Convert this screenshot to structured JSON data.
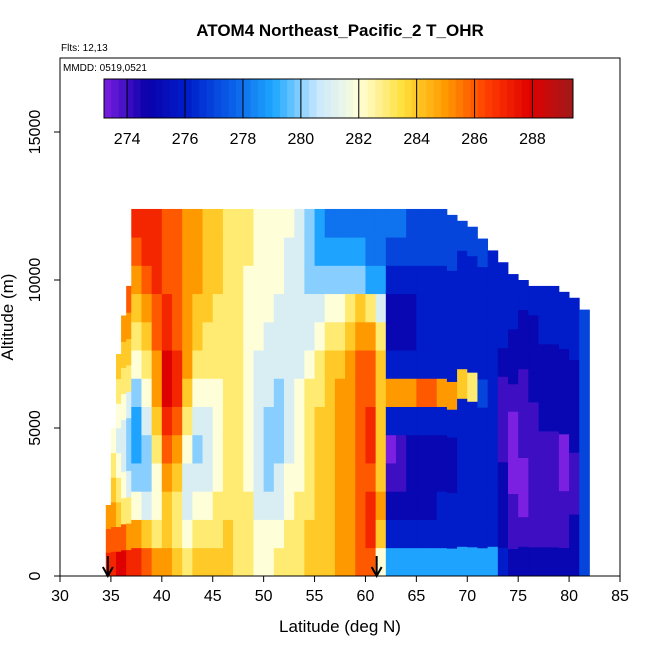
{
  "chart_data": {
    "type": "heatmap",
    "title": "ATOM4 Northeast_Pacific_2 T_OHR",
    "annotations": [
      "Flts: 12,13",
      "MMDD: 0519,0521"
    ],
    "xlabel": "Latitude (deg N)",
    "ylabel": "Altitude (m)",
    "xlim": [
      30,
      85
    ],
    "ylim": [
      0,
      17500
    ],
    "xticks": [
      "30",
      "35",
      "40",
      "45",
      "50",
      "55",
      "60",
      "65",
      "70",
      "75",
      "80",
      "85"
    ],
    "yticks": [
      "0",
      "5000",
      "10000",
      "15000"
    ],
    "colorbar": {
      "range": [
        273.2,
        289.4
      ],
      "ticks": [
        "274",
        "276",
        "278",
        "280",
        "282",
        "284",
        "286",
        "288"
      ],
      "colors": [
        "#7B1FE0",
        "#0A00AA",
        "#0020CC",
        "#0A5FE8",
        "#1FA9FF",
        "#C9E7FF",
        "#FFFFD8",
        "#FFE03C",
        "#FF9A00",
        "#FF3C00",
        "#E00000",
        "#A01A1A"
      ]
    },
    "arrows_at_latitude": [
      34.7,
      61.1
    ],
    "profiles": [
      {
        "lat": 35.0,
        "top": 2400,
        "temps": [
          287,
          286,
          285
        ]
      },
      {
        "lat": 35.5,
        "top": 5000,
        "temps": [
          287,
          286,
          285,
          284,
          283,
          282
        ]
      },
      {
        "lat": 36.0,
        "top": 7500,
        "temps": [
          288,
          286,
          284,
          283,
          282,
          281,
          282,
          283,
          284
        ]
      },
      {
        "lat": 36.5,
        "top": 8800,
        "temps": [
          288,
          286,
          283,
          282,
          281,
          281,
          282,
          283,
          284,
          285
        ]
      },
      {
        "lat": 37.0,
        "top": 9800,
        "temps": [
          287,
          285,
          283,
          281,
          280,
          280,
          281,
          283,
          284,
          285,
          286
        ]
      },
      {
        "lat": 37.5,
        "top": 12400,
        "temps": [
          287,
          285,
          282,
          280,
          279,
          279,
          280,
          282,
          283,
          284,
          285,
          286,
          287
        ]
      },
      {
        "lat": 38.5,
        "top": 12400,
        "temps": [
          286,
          284,
          281,
          280,
          280,
          281,
          282,
          283,
          284,
          285,
          286,
          287,
          287
        ]
      },
      {
        "lat": 39.5,
        "top": 12400,
        "temps": [
          285,
          283,
          282,
          282,
          283,
          284,
          285,
          285,
          286,
          286,
          287,
          287,
          287
        ]
      },
      {
        "lat": 40.5,
        "top": 12400,
        "temps": [
          285,
          284,
          284,
          285,
          286,
          287,
          288,
          288,
          287,
          287,
          286,
          286,
          286
        ]
      },
      {
        "lat": 41.5,
        "top": 12400,
        "temps": [
          284,
          283,
          283,
          284,
          285,
          286,
          287,
          287,
          286,
          286,
          286,
          286,
          286
        ]
      },
      {
        "lat": 42.5,
        "top": 12400,
        "temps": [
          283,
          282,
          281,
          281,
          282,
          283,
          284,
          285,
          285,
          285,
          285,
          285,
          285
        ]
      },
      {
        "lat": 43.5,
        "top": 12400,
        "temps": [
          284,
          283,
          282,
          281,
          280,
          281,
          282,
          283,
          284,
          284,
          285,
          285,
          285
        ]
      },
      {
        "lat": 44.5,
        "top": 12400,
        "temps": [
          284,
          283,
          282,
          281,
          281,
          281,
          282,
          283,
          283,
          284,
          284,
          284,
          284
        ]
      },
      {
        "lat": 45.5,
        "top": 12400,
        "temps": [
          284,
          283,
          283,
          282,
          282,
          282,
          282,
          283,
          283,
          283,
          284,
          284,
          284
        ]
      },
      {
        "lat": 46.5,
        "top": 12400,
        "temps": [
          284,
          284,
          283,
          283,
          283,
          283,
          283,
          283,
          283,
          283,
          283,
          283,
          283
        ]
      },
      {
        "lat": 47.5,
        "top": 12400,
        "temps": [
          283,
          283,
          283,
          283,
          283,
          283,
          283,
          283,
          283,
          283,
          283,
          283,
          283
        ]
      },
      {
        "lat": 48.5,
        "top": 12400,
        "temps": [
          283,
          283,
          283,
          282,
          282,
          282,
          282,
          282,
          282,
          282,
          282,
          283,
          283
        ]
      },
      {
        "lat": 49.5,
        "top": 12400,
        "temps": [
          282,
          282,
          281,
          281,
          281,
          281,
          281,
          281,
          282,
          282,
          282,
          282,
          282
        ]
      },
      {
        "lat": 50.5,
        "top": 12400,
        "temps": [
          282,
          282,
          281,
          280,
          280,
          280,
          281,
          281,
          281,
          282,
          282,
          282,
          282
        ]
      },
      {
        "lat": 51.5,
        "top": 12400,
        "temps": [
          283,
          282,
          281,
          281,
          280,
          280,
          280,
          281,
          281,
          281,
          282,
          282,
          282
        ]
      },
      {
        "lat": 52.5,
        "top": 12400,
        "temps": [
          283,
          283,
          282,
          282,
          281,
          281,
          281,
          281,
          281,
          281,
          281,
          281,
          282
        ]
      },
      {
        "lat": 53.5,
        "top": 12400,
        "temps": [
          283,
          283,
          283,
          282,
          282,
          282,
          282,
          281,
          281,
          281,
          281,
          281,
          281
        ]
      },
      {
        "lat": 54.5,
        "top": 12400,
        "temps": [
          284,
          284,
          283,
          283,
          283,
          283,
          283,
          282,
          281,
          281,
          280,
          280,
          280
        ]
      },
      {
        "lat": 55.5,
        "top": 12400,
        "temps": [
          284,
          284,
          284,
          284,
          284,
          284,
          283,
          283,
          282,
          281,
          280,
          279,
          279
        ]
      },
      {
        "lat": 56.5,
        "top": 12400,
        "temps": [
          284,
          284,
          284,
          284,
          284,
          284,
          284,
          284,
          283,
          282,
          280,
          279,
          278
        ]
      },
      {
        "lat": 57.5,
        "top": 12400,
        "temps": [
          285,
          285,
          285,
          285,
          285,
          285,
          285,
          284,
          283,
          282,
          280,
          279,
          278
        ]
      },
      {
        "lat": 58.5,
        "top": 12400,
        "temps": [
          285,
          285,
          285,
          285,
          285,
          285,
          285,
          285,
          284,
          283,
          280,
          279,
          278
        ]
      },
      {
        "lat": 59.5,
        "top": 12400,
        "temps": [
          286,
          286,
          286,
          286,
          286,
          286,
          286,
          286,
          285,
          284,
          280,
          279,
          278
        ]
      },
      {
        "lat": 60.5,
        "top": 12400,
        "temps": [
          286,
          287,
          287,
          286,
          287,
          287,
          286,
          286,
          285,
          283,
          279,
          278,
          278
        ]
      },
      {
        "lat": 61.5,
        "top": 12400,
        "temps": [
          282,
          284,
          285,
          284,
          284,
          284,
          284,
          284,
          283,
          281,
          279,
          278,
          278
        ]
      },
      {
        "lat": 62.5,
        "top": 12400,
        "temps": [
          279,
          276,
          275,
          274,
          273,
          276,
          285,
          276,
          275,
          275,
          276,
          277,
          278
        ]
      },
      {
        "lat": 63.5,
        "top": 12400,
        "temps": [
          279,
          276,
          275,
          274,
          274,
          276,
          285,
          276,
          275,
          275,
          276,
          277,
          278
        ]
      },
      {
        "lat": 64.5,
        "top": 12400,
        "temps": [
          279,
          276,
          275,
          275,
          275,
          276,
          285,
          276,
          275,
          275,
          276,
          277,
          277
        ]
      },
      {
        "lat": 65.5,
        "top": 12400,
        "temps": [
          279,
          276,
          275,
          275,
          275,
          276,
          286,
          276,
          276,
          276,
          276,
          277,
          277
        ]
      },
      {
        "lat": 66.5,
        "top": 12400,
        "temps": [
          279,
          276,
          275,
          275,
          275,
          276,
          286,
          276,
          276,
          276,
          276,
          277,
          277
        ]
      },
      {
        "lat": 67.5,
        "top": 12400,
        "temps": [
          279,
          276,
          276,
          275,
          275,
          276,
          285,
          276,
          276,
          276,
          276,
          277,
          277
        ]
      },
      {
        "lat": 68.5,
        "top": 12200,
        "temps": [
          279,
          276,
          276,
          275,
          275,
          276,
          285,
          276,
          276,
          276,
          276,
          277,
          277
        ]
      },
      {
        "lat": 69.5,
        "top": 12000,
        "temps": [
          279,
          276,
          276,
          276,
          276,
          276,
          284,
          276,
          276,
          276,
          276,
          277
        ]
      },
      {
        "lat": 70.5,
        "top": 11800,
        "temps": [
          279,
          276,
          276,
          276,
          276,
          276,
          283,
          276,
          276,
          276,
          276,
          277
        ]
      },
      {
        "lat": 71.5,
        "top": 11400,
        "temps": [
          279,
          276,
          276,
          276,
          276,
          276,
          277,
          276,
          276,
          276,
          276,
          277
        ]
      },
      {
        "lat": 72.5,
        "top": 11000,
        "temps": [
          279,
          276,
          276,
          276,
          276,
          276,
          276,
          276,
          276,
          276,
          276
        ]
      },
      {
        "lat": 73.5,
        "top": 10600,
        "temps": [
          276,
          275,
          275,
          275,
          274,
          274,
          274,
          275,
          276,
          276,
          276
        ]
      },
      {
        "lat": 74.5,
        "top": 10200,
        "temps": [
          275,
          274,
          274,
          273,
          273,
          273,
          274,
          275,
          275,
          276,
          276
        ]
      },
      {
        "lat": 75.5,
        "top": 10000,
        "temps": [
          275,
          274,
          273,
          273,
          274,
          274,
          274,
          275,
          275,
          276
        ]
      },
      {
        "lat": 76.5,
        "top": 9800,
        "temps": [
          275,
          274,
          274,
          274,
          274,
          274,
          275,
          275,
          275,
          276
        ]
      },
      {
        "lat": 77.5,
        "top": 9800,
        "temps": [
          275,
          274,
          274,
          274,
          274,
          275,
          275,
          275,
          276,
          276
        ]
      },
      {
        "lat": 78.5,
        "top": 9800,
        "temps": [
          275,
          274,
          274,
          274,
          274,
          275,
          275,
          275,
          276,
          276
        ]
      },
      {
        "lat": 79.5,
        "top": 9600,
        "temps": [
          275,
          274,
          274,
          273,
          273,
          275,
          275,
          275,
          276,
          276
        ]
      },
      {
        "lat": 80.5,
        "top": 9400,
        "temps": [
          275,
          275,
          274,
          274,
          275,
          275,
          275,
          276,
          276
        ]
      },
      {
        "lat": 81.5,
        "top": 9000,
        "temps": [
          277,
          277,
          277,
          277
        ]
      }
    ]
  }
}
